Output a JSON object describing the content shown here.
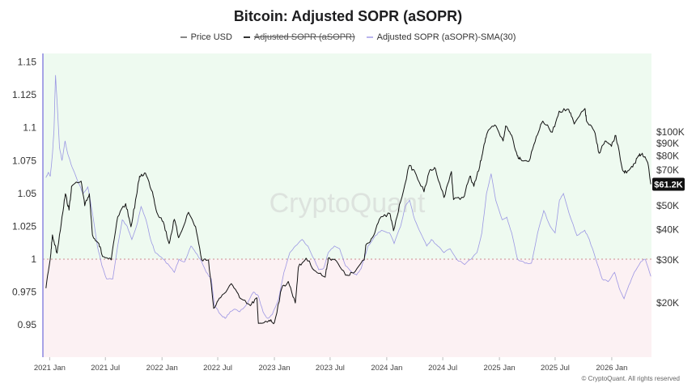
{
  "title": "Bitcoin: Adjusted SOPR (aSOPR)",
  "legend": [
    {
      "label": "Price USD",
      "color": "#888888",
      "off": false
    },
    {
      "label": "Adjusted SOPR (aSOPR)",
      "color": "#333333",
      "off": true
    },
    {
      "label": "Adjusted SOPR (aSOPR)-SMA(30)",
      "color": "#b9b4ee",
      "off": false
    }
  ],
  "watermark": "CryptoQuant",
  "copyright": "© CryptoQuant. All rights reserved",
  "colors": {
    "price": "#111111",
    "sma": "#8c86e0",
    "above_fill": "#eefaf0",
    "below_fill": "#fcf1f3",
    "reference": "#c99090",
    "axis": "#8c86e0"
  },
  "chart_data": {
    "type": "line",
    "title": "Bitcoin: Adjusted SOPR (aSOPR)",
    "x_range": [
      "2020-12-10",
      "2026-05-10"
    ],
    "x_ticks": [
      {
        "date": "2021-01-01",
        "label": "2021 Jan"
      },
      {
        "date": "2021-07-01",
        "label": "2021 Jul"
      },
      {
        "date": "2022-01-01",
        "label": "2022 Jan"
      },
      {
        "date": "2022-07-01",
        "label": "2022 Jul"
      },
      {
        "date": "2023-01-01",
        "label": "2023 Jan"
      },
      {
        "date": "2023-07-01",
        "label": "2023 Jul"
      },
      {
        "date": "2024-01-01",
        "label": "2024 Jan"
      },
      {
        "date": "2024-07-01",
        "label": "2024 Jul"
      },
      {
        "date": "2025-01-01",
        "label": "2025 Jan"
      },
      {
        "date": "2025-07-01",
        "label": "2025 Jul"
      },
      {
        "date": "2026-01-01",
        "label": "2026 Jan"
      }
    ],
    "y_left": {
      "ylim": [
        0.9255,
        1.1565
      ],
      "reference_line": 1,
      "ticks": [
        {
          "value": 1.15,
          "label": "1.15"
        },
        {
          "value": 1.125,
          "label": "1.125"
        },
        {
          "value": 1.1,
          "label": "1.1"
        },
        {
          "value": 1.075,
          "label": "1.075"
        },
        {
          "value": 1.05,
          "label": "1.05"
        },
        {
          "value": 1.025,
          "label": "1.025"
        },
        {
          "value": 1.0,
          "label": "1"
        },
        {
          "value": 0.975,
          "label": "0.975"
        },
        {
          "value": 0.95,
          "label": "0.95"
        }
      ]
    },
    "y_right": {
      "scale": "log",
      "ylim": [
        12000,
        210000
      ],
      "ticks": [
        {
          "value": 100000,
          "label": "$100K"
        },
        {
          "value": 90000,
          "label": "$90K"
        },
        {
          "value": 80000,
          "label": "$80K"
        },
        {
          "value": 70000,
          "label": "$70K"
        },
        {
          "value": 50000,
          "label": "$50K"
        },
        {
          "value": 40000,
          "label": "$40K"
        },
        {
          "value": 30000,
          "label": "$30K"
        },
        {
          "value": 20000,
          "label": "$20K"
        }
      ],
      "current_price_label": "$61.2K",
      "current_price_value": 61200
    },
    "series": [
      {
        "name": "Price USD",
        "axis": "right",
        "points": [
          [
            "2020-12-20",
            23000
          ],
          [
            "2021-01-05",
            32000
          ],
          [
            "2021-01-10",
            38000
          ],
          [
            "2021-01-25",
            32000
          ],
          [
            "2021-02-10",
            45000
          ],
          [
            "2021-02-21",
            56000
          ],
          [
            "2021-03-05",
            48000
          ],
          [
            "2021-03-13",
            60000
          ],
          [
            "2021-04-13",
            63000
          ],
          [
            "2021-04-25",
            50000
          ],
          [
            "2021-05-10",
            56000
          ],
          [
            "2021-05-20",
            38000
          ],
          [
            "2021-06-10",
            35000
          ],
          [
            "2021-06-22",
            31000
          ],
          [
            "2021-07-20",
            30000
          ],
          [
            "2021-08-10",
            45000
          ],
          [
            "2021-09-05",
            51000
          ],
          [
            "2021-09-22",
            41000
          ],
          [
            "2021-10-10",
            55000
          ],
          [
            "2021-10-20",
            66000
          ],
          [
            "2021-11-08",
            68000
          ],
          [
            "2021-12-01",
            57000
          ],
          [
            "2021-12-15",
            47000
          ],
          [
            "2022-01-05",
            43000
          ],
          [
            "2022-01-24",
            35000
          ],
          [
            "2022-02-10",
            44000
          ],
          [
            "2022-02-24",
            37000
          ],
          [
            "2022-03-28",
            47000
          ],
          [
            "2022-04-20",
            41000
          ],
          [
            "2022-05-10",
            30000
          ],
          [
            "2022-06-01",
            30000
          ],
          [
            "2022-06-18",
            19000
          ],
          [
            "2022-07-10",
            21000
          ],
          [
            "2022-08-14",
            24000
          ],
          [
            "2022-09-10",
            21000
          ],
          [
            "2022-10-15",
            19500
          ],
          [
            "2022-11-05",
            21000
          ],
          [
            "2022-11-10",
            16500
          ],
          [
            "2022-12-15",
            17000
          ],
          [
            "2023-01-01",
            16600
          ],
          [
            "2023-01-25",
            23000
          ],
          [
            "2023-02-15",
            24500
          ],
          [
            "2023-03-10",
            20000
          ],
          [
            "2023-03-20",
            28000
          ],
          [
            "2023-04-14",
            30500
          ],
          [
            "2023-05-15",
            27000
          ],
          [
            "2023-06-15",
            25500
          ],
          [
            "2023-06-25",
            30500
          ],
          [
            "2023-07-15",
            30200
          ],
          [
            "2023-08-20",
            26000
          ],
          [
            "2023-09-15",
            26500
          ],
          [
            "2023-10-20",
            30000
          ],
          [
            "2023-10-25",
            34500
          ],
          [
            "2023-11-15",
            37000
          ],
          [
            "2023-12-08",
            44000
          ],
          [
            "2024-01-11",
            46500
          ],
          [
            "2024-01-23",
            39500
          ],
          [
            "2024-02-15",
            52000
          ],
          [
            "2024-03-14",
            73000
          ],
          [
            "2024-04-01",
            69000
          ],
          [
            "2024-05-01",
            57000
          ],
          [
            "2024-05-20",
            70000
          ],
          [
            "2024-06-07",
            71000
          ],
          [
            "2024-07-05",
            54000
          ],
          [
            "2024-07-29",
            69000
          ],
          [
            "2024-08-05",
            53000
          ],
          [
            "2024-09-06",
            54000
          ],
          [
            "2024-09-27",
            66000
          ],
          [
            "2024-10-10",
            60000
          ],
          [
            "2024-10-29",
            72500
          ],
          [
            "2024-11-12",
            89000
          ],
          [
            "2024-11-22",
            99000
          ],
          [
            "2024-12-17",
            107000
          ],
          [
            "2025-01-13",
            92000
          ],
          [
            "2025-01-21",
            106000
          ],
          [
            "2025-02-10",
            97000
          ],
          [
            "2025-02-28",
            80000
          ],
          [
            "2025-03-10",
            78000
          ],
          [
            "2025-04-07",
            76000
          ],
          [
            "2025-05-01",
            96000
          ],
          [
            "2025-05-22",
            111000
          ],
          [
            "2025-06-22",
            100000
          ],
          [
            "2025-07-14",
            122000
          ],
          [
            "2025-08-14",
            124000
          ],
          [
            "2025-09-01",
            108000
          ],
          [
            "2025-10-06",
            125000
          ],
          [
            "2025-10-11",
            111000
          ],
          [
            "2025-11-05",
            101000
          ],
          [
            "2025-11-21",
            82000
          ],
          [
            "2025-12-10",
            92000
          ],
          [
            "2025-12-31",
            87500
          ],
          [
            "2026-01-14",
            97000
          ],
          [
            "2026-02-05",
            70000
          ],
          [
            "2026-02-18",
            68000
          ],
          [
            "2026-03-10",
            72000
          ],
          [
            "2026-03-28",
            80000
          ],
          [
            "2026-04-10",
            82000
          ],
          [
            "2026-04-28",
            75000
          ],
          [
            "2026-05-08",
            61200
          ]
        ]
      },
      {
        "name": "Adjusted SOPR (aSOPR)-SMA(30)",
        "axis": "left",
        "points": [
          [
            "2020-12-20",
            1.062
          ],
          [
            "2020-12-28",
            1.066
          ],
          [
            "2021-01-03",
            1.063
          ],
          [
            "2021-01-10",
            1.08
          ],
          [
            "2021-01-15",
            1.098
          ],
          [
            "2021-01-20",
            1.14
          ],
          [
            "2021-01-25",
            1.12
          ],
          [
            "2021-02-02",
            1.085
          ],
          [
            "2021-02-10",
            1.075
          ],
          [
            "2021-02-20",
            1.09
          ],
          [
            "2021-03-01",
            1.08
          ],
          [
            "2021-03-15",
            1.07
          ],
          [
            "2021-04-01",
            1.06
          ],
          [
            "2021-04-20",
            1.05
          ],
          [
            "2021-05-05",
            1.055
          ],
          [
            "2021-05-20",
            1.035
          ],
          [
            "2021-06-05",
            1.01
          ],
          [
            "2021-06-20",
            0.995
          ],
          [
            "2021-07-05",
            0.985
          ],
          [
            "2021-07-25",
            0.985
          ],
          [
            "2021-08-10",
            1.01
          ],
          [
            "2021-08-25",
            1.03
          ],
          [
            "2021-09-10",
            1.025
          ],
          [
            "2021-09-25",
            1.015
          ],
          [
            "2021-10-10",
            1.025
          ],
          [
            "2021-10-25",
            1.04
          ],
          [
            "2021-11-10",
            1.03
          ],
          [
            "2021-11-25",
            1.015
          ],
          [
            "2021-12-10",
            1.005
          ],
          [
            "2022-01-05",
            1.0
          ],
          [
            "2022-01-25",
            0.995
          ],
          [
            "2022-02-10",
            0.99
          ],
          [
            "2022-02-25",
            1.0
          ],
          [
            "2022-03-15",
            0.998
          ],
          [
            "2022-04-05",
            1.01
          ],
          [
            "2022-04-20",
            1.005
          ],
          [
            "2022-05-10",
            0.998
          ],
          [
            "2022-05-25",
            0.99
          ],
          [
            "2022-06-10",
            0.985
          ],
          [
            "2022-06-20",
            0.965
          ],
          [
            "2022-07-10",
            0.958
          ],
          [
            "2022-07-25",
            0.955
          ],
          [
            "2022-08-10",
            0.96
          ],
          [
            "2022-08-25",
            0.962
          ],
          [
            "2022-09-10",
            0.96
          ],
          [
            "2022-10-01",
            0.965
          ],
          [
            "2022-10-25",
            0.975
          ],
          [
            "2022-11-10",
            0.972
          ],
          [
            "2022-11-25",
            0.96
          ],
          [
            "2022-12-10",
            0.955
          ],
          [
            "2022-12-25",
            0.958
          ],
          [
            "2023-01-15",
            0.97
          ],
          [
            "2023-02-01",
            0.99
          ],
          [
            "2023-02-20",
            1.005
          ],
          [
            "2023-03-10",
            1.01
          ],
          [
            "2023-04-01",
            1.015
          ],
          [
            "2023-04-20",
            1.01
          ],
          [
            "2023-05-10",
            1.0
          ],
          [
            "2023-05-25",
            0.992
          ],
          [
            "2023-06-10",
            0.993
          ],
          [
            "2023-06-25",
            1.005
          ],
          [
            "2023-07-15",
            1.01
          ],
          [
            "2023-08-01",
            1.008
          ],
          [
            "2023-08-20",
            0.995
          ],
          [
            "2023-09-10",
            0.99
          ],
          [
            "2023-09-25",
            0.988
          ],
          [
            "2023-10-10",
            0.993
          ],
          [
            "2023-11-01",
            1.01
          ],
          [
            "2023-11-25",
            1.018
          ],
          [
            "2023-12-15",
            1.022
          ],
          [
            "2024-01-10",
            1.02
          ],
          [
            "2024-01-25",
            1.012
          ],
          [
            "2024-02-15",
            1.025
          ],
          [
            "2024-03-01",
            1.04
          ],
          [
            "2024-03-15",
            1.045
          ],
          [
            "2024-04-01",
            1.03
          ],
          [
            "2024-04-20",
            1.02
          ],
          [
            "2024-05-10",
            1.01
          ],
          [
            "2024-05-25",
            1.015
          ],
          [
            "2024-06-15",
            1.01
          ],
          [
            "2024-07-05",
            1.005
          ],
          [
            "2024-07-25",
            1.008
          ],
          [
            "2024-08-15",
            1.0
          ],
          [
            "2024-09-10",
            0.996
          ],
          [
            "2024-10-01",
            1.0
          ],
          [
            "2024-10-20",
            1.005
          ],
          [
            "2024-11-05",
            1.02
          ],
          [
            "2024-11-20",
            1.05
          ],
          [
            "2024-12-05",
            1.065
          ],
          [
            "2024-12-20",
            1.045
          ],
          [
            "2025-01-10",
            1.03
          ],
          [
            "2025-01-25",
            1.032
          ],
          [
            "2025-02-10",
            1.02
          ],
          [
            "2025-03-01",
            1.0
          ],
          [
            "2025-03-25",
            0.997
          ],
          [
            "2025-04-15",
            0.997
          ],
          [
            "2025-05-05",
            1.02
          ],
          [
            "2025-05-25",
            1.037
          ],
          [
            "2025-06-15",
            1.025
          ],
          [
            "2025-07-01",
            1.02
          ],
          [
            "2025-07-15",
            1.045
          ],
          [
            "2025-07-28",
            1.05
          ],
          [
            "2025-08-15",
            1.035
          ],
          [
            "2025-09-10",
            1.018
          ],
          [
            "2025-10-05",
            1.022
          ],
          [
            "2025-10-20",
            1.015
          ],
          [
            "2025-11-10",
            1.0
          ],
          [
            "2025-12-01",
            0.985
          ],
          [
            "2025-12-20",
            0.983
          ],
          [
            "2026-01-10",
            0.99
          ],
          [
            "2026-01-25",
            0.978
          ],
          [
            "2026-02-10",
            0.97
          ],
          [
            "2026-02-25",
            0.98
          ],
          [
            "2026-03-15",
            0.99
          ],
          [
            "2026-04-05",
            0.998
          ],
          [
            "2026-04-20",
            1.0
          ],
          [
            "2026-05-08",
            0.987
          ]
        ]
      }
    ]
  }
}
